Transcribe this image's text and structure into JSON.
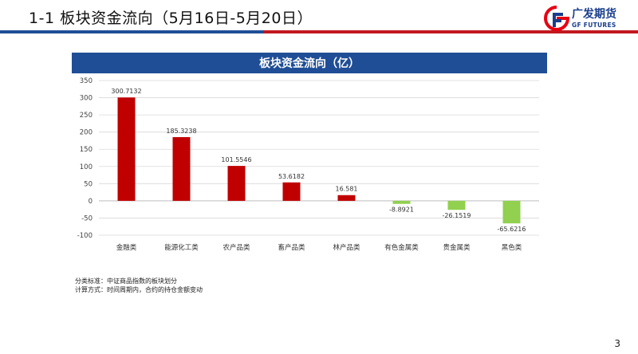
{
  "slide": {
    "title": "1-1  板块资金流向（5月16日-5月20日）",
    "page_number": "3",
    "accent_blue": "#1f4e96",
    "accent_red": "#c0191f"
  },
  "logo": {
    "text_cn": "广发期货",
    "text_en": "GF FUTURES",
    "icon": "gf-logo-mark"
  },
  "notes": {
    "line1": "分类标准：中证商品指数的板块划分",
    "line2": "计算方式：时间周期内，合约的持仓金额变动"
  },
  "chart_data": {
    "type": "bar",
    "title": "板块资金流向（亿）",
    "categories": [
      "金融类",
      "能源化工类",
      "农产品类",
      "畜产品类",
      "林产品类",
      "有色金属类",
      "贵金属类",
      "黑色类"
    ],
    "values": [
      300.7132,
      185.3238,
      101.5546,
      53.6182,
      16.581,
      -8.8921,
      -26.1519,
      -65.6216
    ],
    "value_labels": [
      "300.7132",
      "185.3238",
      "101.5546",
      "53.6182",
      "16.581",
      "-8.8921",
      "-26.1519",
      "-65.6216"
    ],
    "ylim": [
      -100,
      350
    ],
    "yticks": [
      -100,
      -50,
      0,
      50,
      100,
      150,
      200,
      250,
      300,
      350
    ],
    "grid": true,
    "positive_color": "#c00000",
    "negative_color": "#92d050",
    "header_color": "#1f4e96"
  }
}
